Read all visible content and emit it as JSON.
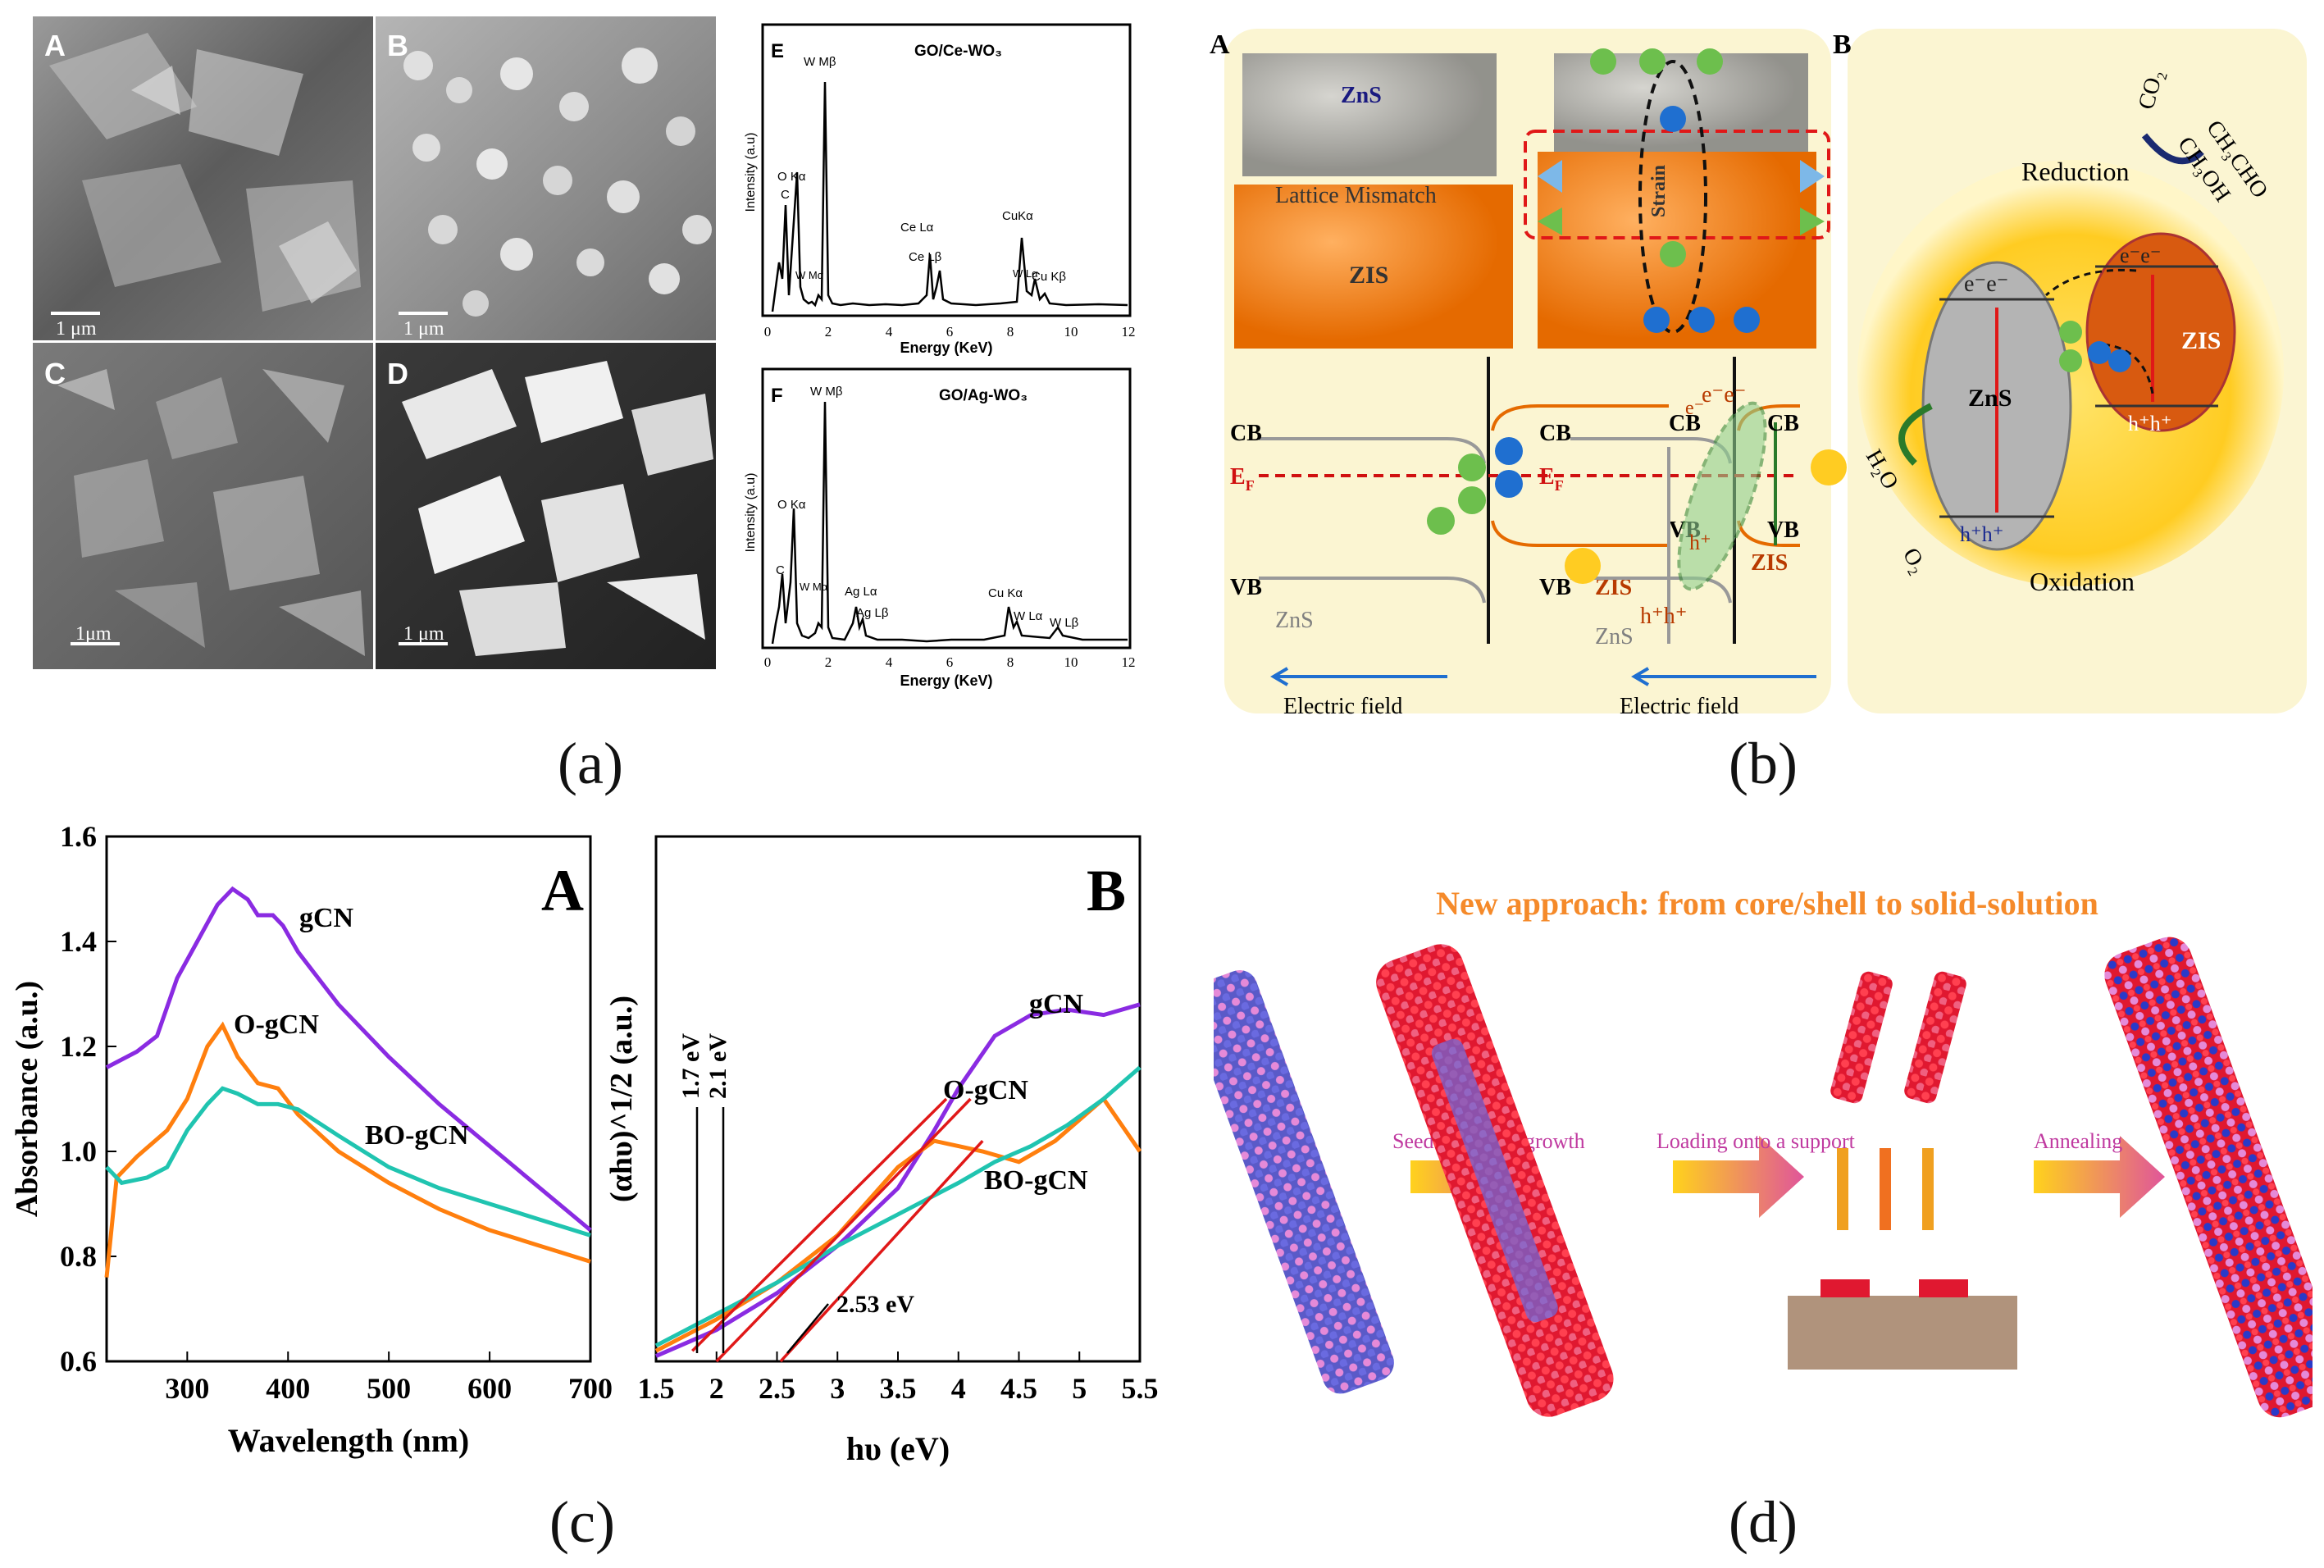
{
  "captions": {
    "a": "(a)",
    "b": "(b)",
    "c": "(c)",
    "d": "(d)"
  },
  "panel_a": {
    "sem": [
      {
        "label": "A",
        "scale": "1 μm"
      },
      {
        "label": "B",
        "scale": "1 μm"
      },
      {
        "label": "C",
        "scale": "1μm"
      },
      {
        "label": "D",
        "scale": "1 μm"
      }
    ],
    "eds_e": {
      "label": "E",
      "title": "GO/Ce-WO₃",
      "ylabel": "Intensity (a.u)",
      "xlabel": "Energy (KeV)",
      "ticks": [
        "0",
        "2",
        "4",
        "6",
        "8",
        "10",
        "12"
      ],
      "peaks": [
        "W Mβ",
        "O Kα",
        "C",
        "W Mα",
        "Ce Lα",
        "Ce Lβ",
        "CuKα",
        "W Lα",
        "Cu Kβ"
      ]
    },
    "eds_f": {
      "label": "F",
      "title": "GO/Ag-WO₃",
      "ylabel": "Intensity (a.u)",
      "xlabel": "Energy (KeV)",
      "ticks": [
        "0",
        "2",
        "4",
        "6",
        "8",
        "10",
        "12"
      ],
      "peaks": [
        "W Mβ",
        "O Kα",
        "C",
        "W Mα",
        "Ag Lα",
        "Ag Lβ",
        "Cu Kα",
        "W Lα",
        "W Lβ"
      ]
    }
  },
  "panel_b": {
    "label_a": "A",
    "label_b": "B",
    "zns": "ZnS",
    "zis": "ZIS",
    "mismatch": "Lattice Mismatch",
    "strain": "Strain",
    "cb": "CB",
    "vb": "VB",
    "ef": "E",
    "ef_sub": "F",
    "electric_field": "Electric field",
    "electron": "e⁻",
    "hole": "h⁺",
    "ee": "e⁻e⁻",
    "hh": "h⁺h⁺",
    "reduction": "Reduction",
    "oxidation": "Oxidation",
    "co2": "CO₂",
    "ch3cho": "CH₃CHO",
    "ch3oh": "CH₃OH",
    "h2o": "H₂O",
    "o2": "O₂"
  },
  "panel_d": {
    "title": "New approach: from core/shell to solid-solution",
    "step1": "Seed-mediated growth",
    "step2": "Loading onto a support",
    "step3": "Annealing"
  },
  "chart_data": [
    {
      "type": "line",
      "panel": "A",
      "xlabel": "Wavelength (nm)",
      "ylabel": "Absorbance (a.u.)",
      "xlim": [
        220,
        700
      ],
      "ylim": [
        0.6,
        1.6
      ],
      "xticks": [
        300,
        400,
        500,
        600,
        700
      ],
      "yticks": [
        0.6,
        0.8,
        1.0,
        1.2,
        1.4,
        1.6
      ],
      "series": [
        {
          "name": "gCN",
          "color": "#8a2be2",
          "x": [
            220,
            250,
            270,
            290,
            310,
            330,
            345,
            360,
            370,
            385,
            395,
            410,
            450,
            500,
            550,
            600,
            650,
            700
          ],
          "y": [
            1.16,
            1.19,
            1.22,
            1.33,
            1.4,
            1.47,
            1.5,
            1.48,
            1.45,
            1.45,
            1.43,
            1.38,
            1.28,
            1.18,
            1.09,
            1.01,
            0.93,
            0.85
          ]
        },
        {
          "name": "O-gCN",
          "color": "#ff7f0e",
          "x": [
            220,
            230,
            250,
            280,
            300,
            320,
            335,
            350,
            370,
            390,
            410,
            450,
            500,
            550,
            600,
            650,
            700
          ],
          "y": [
            0.76,
            0.95,
            0.99,
            1.04,
            1.1,
            1.2,
            1.24,
            1.18,
            1.13,
            1.12,
            1.07,
            1.0,
            0.94,
            0.89,
            0.85,
            0.82,
            0.79
          ]
        },
        {
          "name": "BO-gCN",
          "color": "#20c4b0",
          "x": [
            220,
            235,
            260,
            280,
            300,
            320,
            335,
            350,
            370,
            390,
            410,
            450,
            500,
            550,
            600,
            650,
            700
          ],
          "y": [
            0.97,
            0.94,
            0.95,
            0.97,
            1.04,
            1.09,
            1.12,
            1.11,
            1.09,
            1.09,
            1.08,
            1.03,
            0.97,
            0.93,
            0.9,
            0.87,
            0.84
          ]
        }
      ]
    },
    {
      "type": "line",
      "panel": "B",
      "xlabel": "hυ (eV)",
      "ylabel": "(αhυ)^1/2 (a.u.)",
      "xlim": [
        1.5,
        5.5
      ],
      "ylim": [
        0,
        1
      ],
      "xticks": [
        1.5,
        2.0,
        2.5,
        3.0,
        3.5,
        4.0,
        4.5,
        5.0,
        5.5
      ],
      "series": [
        {
          "name": "gCN",
          "color": "#8a2be2",
          "x": [
            1.5,
            2.0,
            2.5,
            3.0,
            3.5,
            3.8,
            4.0,
            4.3,
            4.6,
            4.9,
            5.2,
            5.5
          ],
          "y": [
            0.01,
            0.06,
            0.13,
            0.22,
            0.33,
            0.44,
            0.52,
            0.62,
            0.66,
            0.67,
            0.66,
            0.68
          ]
        },
        {
          "name": "O-gCN",
          "color": "#ff7f0e",
          "x": [
            1.5,
            2.0,
            2.5,
            3.0,
            3.5,
            3.8,
            4.0,
            4.2,
            4.5,
            4.8,
            5.2,
            5.5
          ],
          "y": [
            0.02,
            0.08,
            0.15,
            0.24,
            0.37,
            0.42,
            0.41,
            0.4,
            0.38,
            0.42,
            0.5,
            0.4
          ]
        },
        {
          "name": "BO-gCN",
          "color": "#20c4b0",
          "x": [
            1.5,
            2.0,
            2.5,
            3.0,
            3.5,
            4.0,
            4.3,
            4.6,
            4.9,
            5.2,
            5.5
          ],
          "y": [
            0.03,
            0.09,
            0.15,
            0.22,
            0.28,
            0.34,
            0.38,
            0.41,
            0.45,
            0.5,
            0.56
          ]
        }
      ],
      "annotations": [
        "1.7 eV",
        "2.1 eV",
        "2.53 eV"
      ]
    }
  ]
}
